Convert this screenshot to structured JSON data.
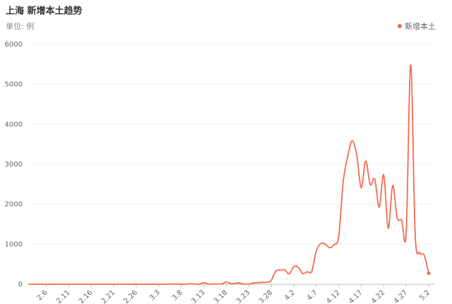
{
  "chart_data": {
    "type": "line",
    "title": "上海 新增本土趋势",
    "subtitle": "单位: 例",
    "categories": [
      null,
      null,
      null,
      null,
      "2.6",
      null,
      null,
      null,
      null,
      "2.11",
      null,
      null,
      null,
      null,
      "2.16",
      null,
      null,
      null,
      null,
      "2.21",
      null,
      null,
      null,
      null,
      "2.26",
      null,
      null,
      null,
      null,
      "3.3",
      null,
      null,
      null,
      null,
      "3.8",
      null,
      null,
      null,
      null,
      "3.13",
      null,
      null,
      null,
      null,
      "3.18",
      null,
      null,
      null,
      null,
      "3.23",
      null,
      null,
      null,
      null,
      "3.28",
      null,
      null,
      null,
      null,
      "4.2",
      null,
      null,
      null,
      null,
      "4.7",
      null,
      null,
      null,
      null,
      "4.12",
      null,
      null,
      null,
      null,
      "4.17",
      null,
      null,
      null,
      null,
      "4.22",
      null,
      null,
      null,
      null,
      "4.27",
      null,
      null,
      null,
      null,
      "5.2"
    ],
    "series": [
      {
        "name": "新增本土",
        "color": "#f26b4f",
        "values": [
          0,
          0,
          0,
          0,
          0,
          1,
          0,
          0,
          0,
          0,
          0,
          0,
          0,
          0,
          0,
          0,
          0,
          0,
          0,
          0,
          0,
          0,
          0,
          0,
          0,
          0,
          0,
          1,
          1,
          2,
          2,
          3,
          3,
          3,
          3,
          3,
          11,
          5,
          1,
          41,
          5,
          5,
          8,
          8,
          57,
          17,
          24,
          31,
          4,
          4,
          29,
          38,
          45,
          50,
          96,
          326,
          355,
          358,
          260,
          438,
          425,
          268,
          311,
          322,
          824,
          1015,
          1006,
          914,
          994,
          1189,
          2573,
          3200,
          3590,
          3238,
          2417,
          3084,
          2494,
          2634,
          1931,
          2736,
          1401,
          2472,
          1661,
          1606,
          1292,
          5487,
          1249,
          788,
          727,
          274
        ]
      }
    ],
    "ylim": [
      0,
      6000
    ],
    "yticks": [
      0,
      1000,
      2000,
      3000,
      4000,
      5000,
      6000
    ],
    "grid": true,
    "legend": "top-right"
  }
}
